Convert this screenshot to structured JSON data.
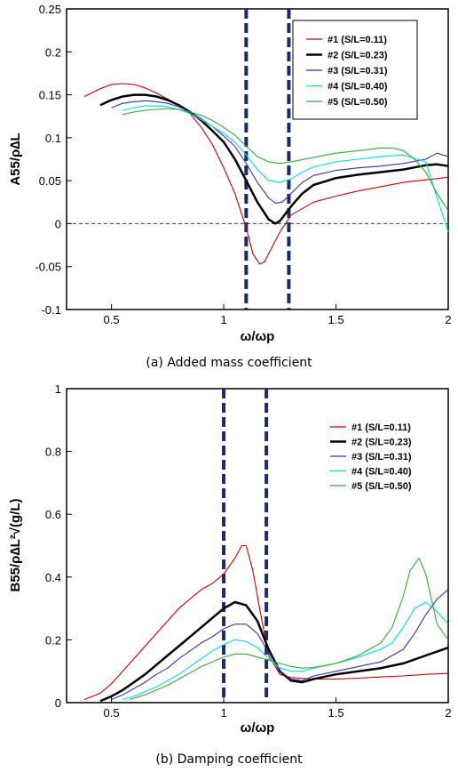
{
  "chart_data": [
    {
      "type": "line",
      "caption": "(a) Added mass coefficient",
      "xlabel": "ω/ωp",
      "ylabel": "A55/ρ∆L",
      "xlim": [
        0.3,
        2.0
      ],
      "ylim": [
        -0.1,
        0.25
      ],
      "xticks": [
        0.5,
        1,
        1.5,
        2
      ],
      "xtick_labels": [
        "0.5",
        "1",
        "1.5",
        "2"
      ],
      "yticks": [
        -0.1,
        -0.05,
        0,
        0.05,
        0.1,
        0.15,
        0.2,
        0.25
      ],
      "ytick_labels": [
        "-0.1",
        "-0.05",
        "0",
        "0.05",
        "0.1",
        "0.15",
        "0.2",
        "0.25"
      ],
      "grid": false,
      "legend_position": "top-right",
      "zero_line": true,
      "vlines": [
        1.1,
        1.29
      ],
      "series": [
        {
          "name": "#1 (S/L=0.11)",
          "color": "#cc0000",
          "x": [
            0.38,
            0.45,
            0.5,
            0.55,
            0.6,
            0.65,
            0.7,
            0.75,
            0.8,
            0.85,
            0.9,
            0.95,
            1.0,
            1.05,
            1.1,
            1.13,
            1.16,
            1.18,
            1.2,
            1.25,
            1.3,
            1.4,
            1.5,
            1.6,
            1.7,
            1.8,
            1.9,
            2.0
          ],
          "y": [
            0.148,
            0.157,
            0.162,
            0.163,
            0.162,
            0.158,
            0.152,
            0.145,
            0.138,
            0.128,
            0.112,
            0.092,
            0.065,
            0.035,
            -0.005,
            -0.035,
            -0.047,
            -0.045,
            -0.035,
            -0.01,
            0.01,
            0.025,
            0.032,
            0.038,
            0.043,
            0.048,
            0.051,
            0.054
          ]
        },
        {
          "name": "#2 (S/L=0.23)",
          "color": "#000000",
          "x": [
            0.45,
            0.5,
            0.55,
            0.6,
            0.65,
            0.7,
            0.75,
            0.8,
            0.85,
            0.9,
            0.95,
            1.0,
            1.05,
            1.1,
            1.15,
            1.2,
            1.23,
            1.25,
            1.3,
            1.35,
            1.4,
            1.5,
            1.6,
            1.7,
            1.8,
            1.9,
            1.95,
            2.0
          ],
          "y": [
            0.138,
            0.144,
            0.148,
            0.15,
            0.15,
            0.148,
            0.144,
            0.138,
            0.13,
            0.12,
            0.108,
            0.095,
            0.075,
            0.05,
            0.025,
            0.005,
            0.0,
            0.003,
            0.02,
            0.035,
            0.045,
            0.053,
            0.057,
            0.06,
            0.063,
            0.068,
            0.069,
            0.067
          ]
        },
        {
          "name": "#3 (S/L=0.31)",
          "color": "#3333aa",
          "x": [
            0.5,
            0.55,
            0.6,
            0.65,
            0.7,
            0.75,
            0.8,
            0.85,
            0.9,
            0.95,
            1.0,
            1.05,
            1.1,
            1.15,
            1.2,
            1.23,
            1.26,
            1.3,
            1.35,
            1.4,
            1.5,
            1.6,
            1.7,
            1.8,
            1.9,
            1.95,
            2.0
          ],
          "y": [
            0.135,
            0.14,
            0.142,
            0.143,
            0.142,
            0.14,
            0.136,
            0.13,
            0.122,
            0.113,
            0.102,
            0.09,
            0.07,
            0.048,
            0.03,
            0.024,
            0.025,
            0.035,
            0.048,
            0.056,
            0.062,
            0.065,
            0.067,
            0.07,
            0.075,
            0.082,
            0.078
          ]
        },
        {
          "name": "#4 (S/L=0.40)",
          "color": "#00dddd",
          "x": [
            0.55,
            0.6,
            0.65,
            0.7,
            0.75,
            0.8,
            0.85,
            0.9,
            0.95,
            1.0,
            1.05,
            1.1,
            1.15,
            1.2,
            1.25,
            1.3,
            1.35,
            1.4,
            1.5,
            1.6,
            1.7,
            1.8,
            1.9,
            1.95,
            2.0
          ],
          "y": [
            0.132,
            0.135,
            0.137,
            0.137,
            0.136,
            0.133,
            0.128,
            0.121,
            0.113,
            0.105,
            0.095,
            0.08,
            0.063,
            0.05,
            0.048,
            0.052,
            0.06,
            0.066,
            0.072,
            0.075,
            0.078,
            0.08,
            0.072,
            0.03,
            -0.01
          ]
        },
        {
          "name": "#5 (S/L=0.50)",
          "color": "#33aa33",
          "x": [
            0.55,
            0.6,
            0.65,
            0.7,
            0.75,
            0.8,
            0.85,
            0.9,
            0.95,
            1.0,
            1.05,
            1.1,
            1.15,
            1.2,
            1.25,
            1.3,
            1.4,
            1.5,
            1.6,
            1.7,
            1.75,
            1.8,
            1.85,
            1.9,
            1.95,
            2.0
          ],
          "y": [
            0.127,
            0.13,
            0.132,
            0.133,
            0.134,
            0.133,
            0.13,
            0.126,
            0.12,
            0.112,
            0.103,
            0.09,
            0.078,
            0.072,
            0.07,
            0.072,
            0.077,
            0.082,
            0.085,
            0.088,
            0.088,
            0.085,
            0.075,
            0.06,
            0.035,
            0.015
          ]
        }
      ]
    },
    {
      "type": "line",
      "caption": "(b) Damping coefficient",
      "xlabel": "ω/ωp",
      "ylabel": "B55/ρ∆L²√(g/L)",
      "xlim": [
        0.3,
        2.0
      ],
      "ylim": [
        0,
        1
      ],
      "xticks": [
        0.5,
        1,
        1.5,
        2
      ],
      "xtick_labels": [
        "0.5",
        "1",
        "1.5",
        "2"
      ],
      "yticks": [
        0,
        0.2,
        0.4,
        0.6,
        0.8,
        1
      ],
      "ytick_labels": [
        "0",
        "0.2",
        "0.4",
        "0.6",
        "0.8",
        "1"
      ],
      "grid": false,
      "legend_position": "top-right",
      "zero_line": false,
      "vlines": [
        1.0,
        1.19
      ],
      "series": [
        {
          "name": "#1 (S/L=0.11)",
          "color": "#cc0000",
          "x": [
            0.38,
            0.45,
            0.5,
            0.55,
            0.6,
            0.65,
            0.7,
            0.75,
            0.8,
            0.85,
            0.9,
            0.95,
            1.0,
            1.05,
            1.08,
            1.1,
            1.13,
            1.16,
            1.2,
            1.25,
            1.3,
            1.4,
            1.5,
            1.6,
            1.7,
            1.8,
            1.9,
            2.0
          ],
          "y": [
            0.01,
            0.03,
            0.06,
            0.1,
            0.14,
            0.18,
            0.22,
            0.26,
            0.3,
            0.33,
            0.36,
            0.38,
            0.41,
            0.46,
            0.5,
            0.5,
            0.42,
            0.3,
            0.15,
            0.09,
            0.08,
            0.075,
            0.075,
            0.078,
            0.082,
            0.085,
            0.09,
            0.093
          ]
        },
        {
          "name": "#2 (S/L=0.23)",
          "color": "#000000",
          "x": [
            0.45,
            0.5,
            0.55,
            0.6,
            0.65,
            0.7,
            0.75,
            0.8,
            0.85,
            0.9,
            0.95,
            1.0,
            1.05,
            1.1,
            1.15,
            1.2,
            1.25,
            1.3,
            1.35,
            1.4,
            1.5,
            1.6,
            1.7,
            1.8,
            1.9,
            2.0
          ],
          "y": [
            0.005,
            0.02,
            0.04,
            0.065,
            0.09,
            0.12,
            0.15,
            0.18,
            0.21,
            0.24,
            0.27,
            0.3,
            0.32,
            0.31,
            0.26,
            0.17,
            0.1,
            0.07,
            0.065,
            0.075,
            0.09,
            0.1,
            0.11,
            0.125,
            0.15,
            0.175
          ]
        },
        {
          "name": "#3 (S/L=0.31)",
          "color": "#3333aa",
          "x": [
            0.5,
            0.55,
            0.6,
            0.65,
            0.7,
            0.75,
            0.8,
            0.85,
            0.9,
            0.95,
            1.0,
            1.05,
            1.1,
            1.15,
            1.2,
            1.25,
            1.3,
            1.35,
            1.4,
            1.5,
            1.6,
            1.7,
            1.8,
            1.85,
            1.9,
            1.95,
            2.0
          ],
          "y": [
            0.01,
            0.025,
            0.045,
            0.065,
            0.09,
            0.11,
            0.14,
            0.165,
            0.19,
            0.21,
            0.235,
            0.25,
            0.25,
            0.22,
            0.16,
            0.1,
            0.075,
            0.07,
            0.085,
            0.1,
            0.115,
            0.13,
            0.17,
            0.22,
            0.28,
            0.33,
            0.36
          ]
        },
        {
          "name": "#4 (S/L=0.40)",
          "color": "#00dddd",
          "x": [
            0.55,
            0.6,
            0.65,
            0.7,
            0.75,
            0.8,
            0.85,
            0.9,
            0.95,
            1.0,
            1.05,
            1.1,
            1.15,
            1.2,
            1.25,
            1.3,
            1.35,
            1.4,
            1.5,
            1.6,
            1.7,
            1.75,
            1.8,
            1.85,
            1.9,
            1.95,
            2.0
          ],
          "y": [
            0.01,
            0.02,
            0.035,
            0.05,
            0.07,
            0.09,
            0.115,
            0.14,
            0.165,
            0.185,
            0.2,
            0.195,
            0.175,
            0.14,
            0.11,
            0.1,
            0.1,
            0.11,
            0.125,
            0.145,
            0.17,
            0.19,
            0.24,
            0.3,
            0.32,
            0.29,
            0.25
          ]
        },
        {
          "name": "#5 (S/L=0.50)",
          "color": "#33aa33",
          "x": [
            0.58,
            0.65,
            0.7,
            0.75,
            0.8,
            0.85,
            0.9,
            0.95,
            1.0,
            1.05,
            1.1,
            1.15,
            1.2,
            1.25,
            1.3,
            1.35,
            1.4,
            1.5,
            1.6,
            1.7,
            1.75,
            1.8,
            1.83,
            1.87,
            1.9,
            1.95,
            2.0
          ],
          "y": [
            0.01,
            0.025,
            0.04,
            0.055,
            0.075,
            0.095,
            0.115,
            0.13,
            0.145,
            0.155,
            0.155,
            0.145,
            0.135,
            0.125,
            0.115,
            0.11,
            0.112,
            0.125,
            0.15,
            0.19,
            0.24,
            0.34,
            0.42,
            0.46,
            0.41,
            0.25,
            0.2
          ]
        }
      ]
    }
  ]
}
